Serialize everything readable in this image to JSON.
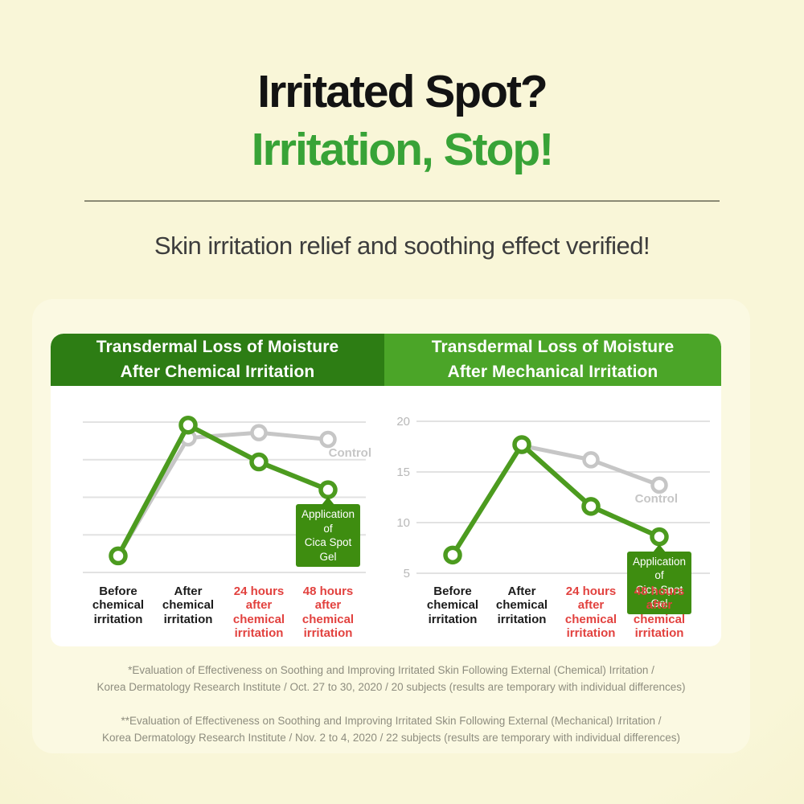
{
  "page": {
    "title": {
      "line1": "Irritated Spot?",
      "line2": "Irritation, Stop!"
    },
    "subtitle": "Skin irritation relief and soothing effect verified!",
    "colors": {
      "background_center": "#f9f6d8",
      "background_edge": "#f0ebbc",
      "panel": "#fbf9e2",
      "card": "#ffffff",
      "title_black": "#131313",
      "title_green": "#38a337",
      "subtitle_gray": "#3d3d3d",
      "divider": "#8b8a75",
      "header_left_bg": "#2d7d14",
      "header_right_bg": "#4ba528",
      "header_text": "#ffffff",
      "treatment_green": "#4c9b1f",
      "control_gray": "#c6c6c6",
      "gridline": "#e2e2e2",
      "axis_label_gray": "#b8b8b8",
      "category_black": "#1c1c1c",
      "category_red": "#e2423f",
      "tooltip_bg": "#3e8d10",
      "footnote_gray": "#8e8d7f"
    }
  },
  "chart_data": [
    {
      "type": "line",
      "title": "Transdermal Loss of Moisture After Chemical Irritation",
      "header": [
        "Transdermal Loss of Moisture",
        "After Chemical Irritation"
      ],
      "y_axis_labeled": false,
      "gridlines": [
        25,
        20,
        15,
        10,
        5
      ],
      "gridline_labels": [
        "",
        "",
        "",
        "",
        ""
      ],
      "ylim": [
        5,
        26
      ],
      "note": "y-axis has no tick labels; values estimated from gridline spacing",
      "categories": [
        {
          "lines": [
            "Before",
            "chemical",
            "irritation"
          ],
          "color": "#1c1c1c"
        },
        {
          "lines": [
            "After",
            "chemical",
            "irritation"
          ],
          "color": "#1c1c1c"
        },
        {
          "lines": [
            "24 hours",
            "after",
            "chemical",
            "irritation"
          ],
          "color": "#e2423f"
        },
        {
          "lines": [
            "48 hours",
            "after",
            "chemical",
            "irritation"
          ],
          "color": "#e2423f"
        }
      ],
      "series": [
        {
          "name": "Control",
          "color": "#c6c6c6",
          "values": [
            7.2,
            22.9,
            23.6,
            22.7
          ]
        },
        {
          "name": "Application of Cica Spot Gel",
          "color": "#4c9b1f",
          "values": [
            7.2,
            24.6,
            19.7,
            16.0
          ]
        }
      ],
      "annotations": {
        "control_label": "Control",
        "tooltip": [
          "Application of",
          "Cica Spot Gel"
        ]
      }
    },
    {
      "type": "line",
      "title": "Transdermal Loss of Moisture After Mechanical Irritation",
      "header": [
        "Transdermal Loss of Moisture",
        "After Mechanical Irritation"
      ],
      "y_axis_labeled": true,
      "gridlines": [
        20,
        15,
        10,
        5
      ],
      "gridline_labels": [
        "20",
        "15",
        "10",
        "5"
      ],
      "ylim": [
        5,
        21
      ],
      "categories": [
        {
          "lines": [
            "Before",
            "chemical",
            "irritation"
          ],
          "color": "#1c1c1c"
        },
        {
          "lines": [
            "After",
            "chemical",
            "irritation"
          ],
          "color": "#1c1c1c"
        },
        {
          "lines": [
            "24 hours",
            "after",
            "chemical",
            "irritation"
          ],
          "color": "#e2423f"
        },
        {
          "lines": [
            "48 hours",
            "after",
            "chemical",
            "irritation"
          ],
          "color": "#e2423f"
        }
      ],
      "series": [
        {
          "name": "Control",
          "color": "#c6c6c6",
          "values": [
            null,
            17.6,
            16.2,
            13.7
          ]
        },
        {
          "name": "Application of Cica Spot Gel",
          "color": "#4c9b1f",
          "values": [
            6.8,
            17.7,
            11.6,
            8.6
          ]
        }
      ],
      "annotations": {
        "control_label": "Control",
        "tooltip": [
          "Application of",
          "Cica Spot Gel"
        ]
      }
    }
  ],
  "footnotes": [
    {
      "line1": "*Evaluation of Effectiveness on Soothing and Improving Irritated Skin Following External (Chemical) Irritation /",
      "line2": "Korea Dermatology Research Institute / Oct. 27 to 30, 2020 / 20 subjects (results are temporary with individual differences)"
    },
    {
      "line1": "**Evaluation of Effectiveness on Soothing and Improving Irritated Skin Following External (Mechanical) Irritation /",
      "line2": "Korea Dermatology Research Institute / Nov. 2 to 4, 2020 / 22 subjects (results are temporary with individual differences)"
    }
  ]
}
